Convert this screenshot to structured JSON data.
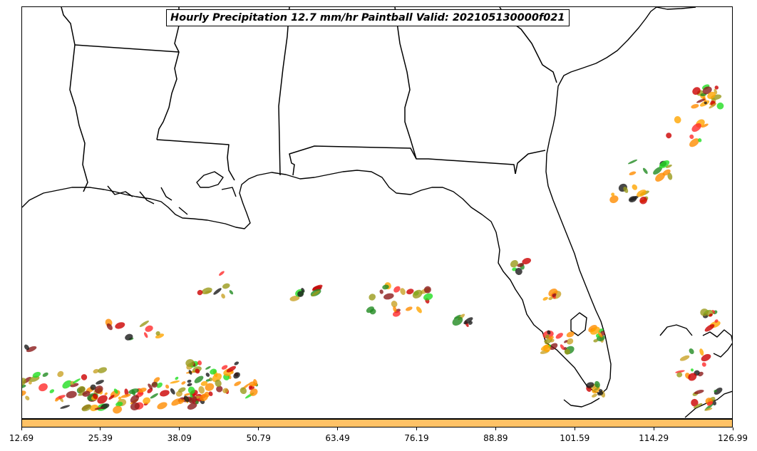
{
  "title": "Hourly Precipitation 12.7 mm/hr Paintball Valid: 202105130000f021",
  "colorbar": {
    "color": "#ffc266",
    "ticks": [
      "12.69",
      "25.39",
      "38.09",
      "50.79",
      "63.49",
      "76.19",
      "88.89",
      "101.59",
      "114.29",
      "126.99"
    ]
  },
  "map": {
    "background": "#ffffff",
    "line_color": "#000000",
    "region": "US Gulf Coast and Florida",
    "paintball_colors": [
      "#cc0000",
      "#ff2a2a",
      "#8b1a1a",
      "#1a1a1a",
      "#228b22",
      "#22dd22",
      "#ff8c00",
      "#ffa500",
      "#9a9a1a",
      "#c9a227"
    ]
  }
}
